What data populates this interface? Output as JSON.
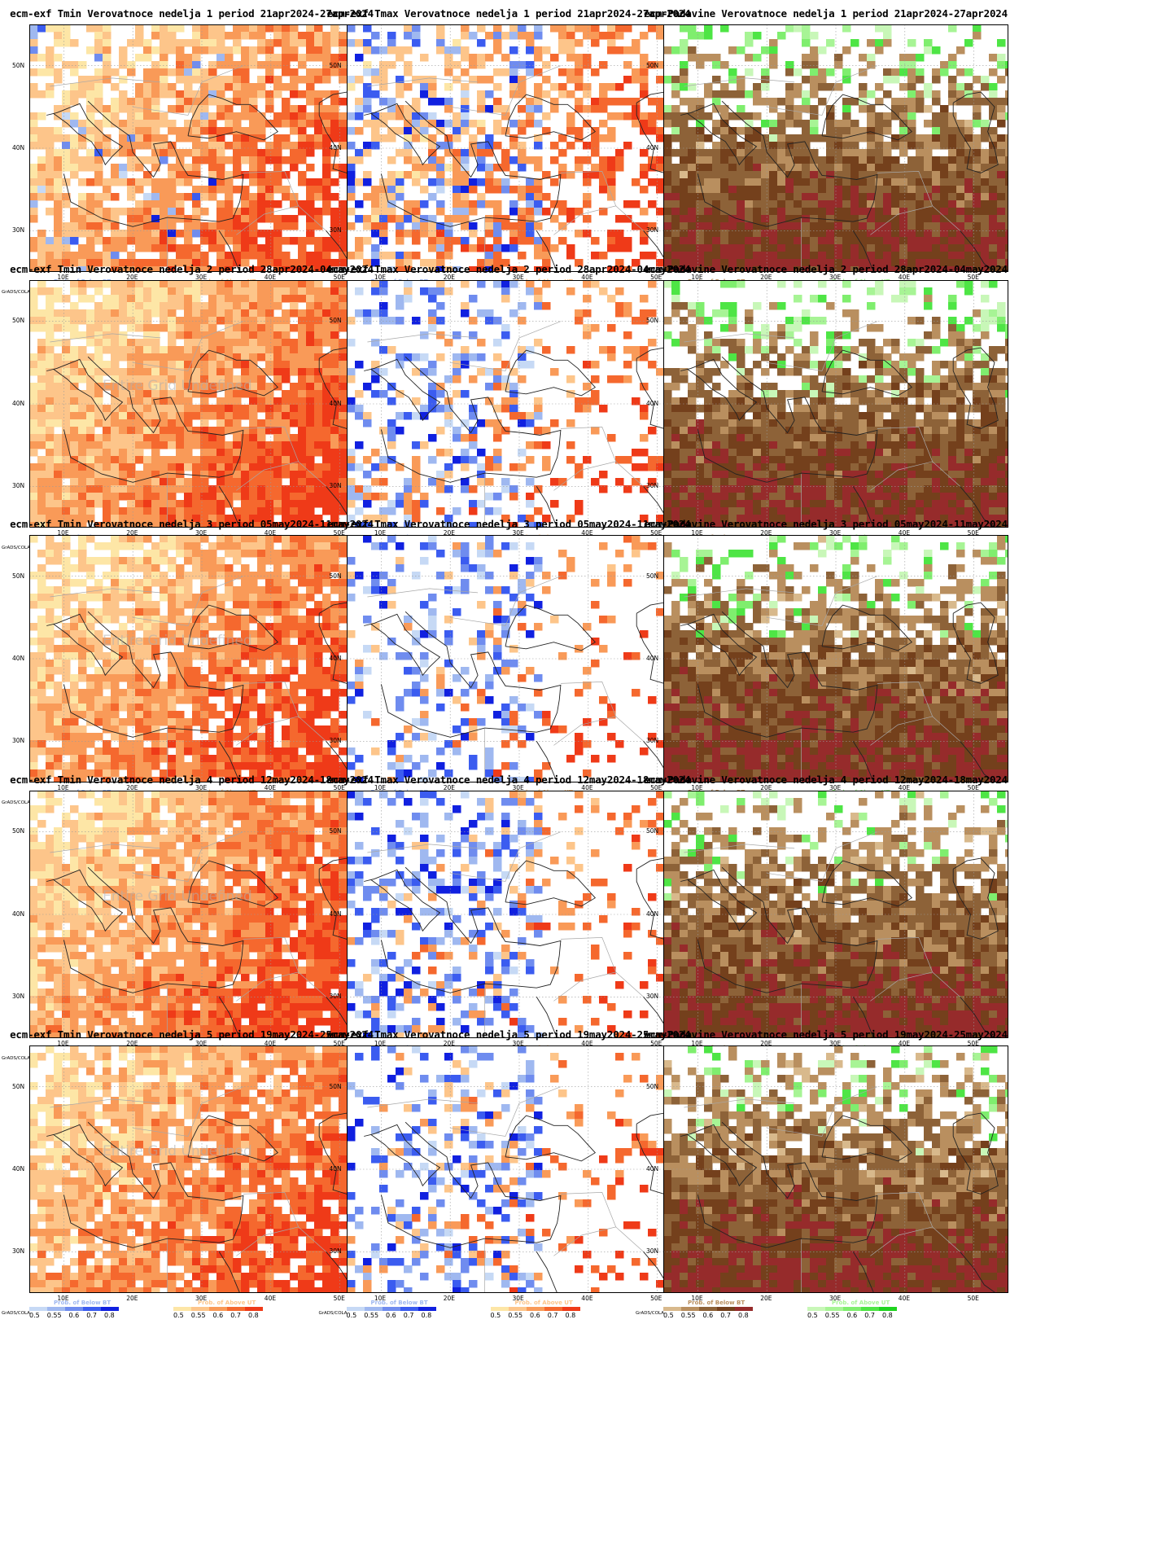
{
  "rows": [
    {
      "week": 1,
      "period": "21apr2024-27apr2024"
    },
    {
      "week": 2,
      "period": "28apr2024-04may2024"
    },
    {
      "week": 3,
      "period": "05may2024-11may2024"
    },
    {
      "week": 4,
      "period": "12may2024-18may2024"
    },
    {
      "week": 5,
      "period": "19may2024-25may2024"
    }
  ],
  "panels": [
    {
      "title": "ecm-exf Tmin Verovatnoce nedelja 1 period 21apr2024-27apr2024",
      "variable": "Tmin",
      "watermark": "",
      "pattern": {
        "below": 0.15,
        "above": 0.75
      }
    },
    {
      "title": "ecm-exf Tmax Verovatnoce nedelja 1 period 21apr2024-27apr2024",
      "variable": "Tmax",
      "watermark": "",
      "pattern": {
        "below": 0.35,
        "above": 0.45
      }
    },
    {
      "title": "ecm-Padavine Verovatnoce nedelja 1 period 21apr2024-27apr2024",
      "variable": "Padavine",
      "watermark": "",
      "pattern": {
        "below": 0.65,
        "above": 0.15
      }
    },
    {
      "title": "ecm-exf Tmin Verovatnoce nedelja 2 period 28apr2024-04may2024",
      "variable": "Tmin",
      "watermark": "Entire Grid Undefined",
      "pattern": {
        "below": 0.0,
        "above": 0.95
      }
    },
    {
      "title": "ecm-exf Tmax Verovatnoce nedelja 2 period 28apr2024-04may2024",
      "variable": "Tmax",
      "watermark": "",
      "pattern": {
        "below": 0.25,
        "above": 0.2
      }
    },
    {
      "title": "ecm-Padavine Verovatnoce nedelja 2 period 28apr2024-04may2024",
      "variable": "Padavine",
      "watermark": "",
      "pattern": {
        "below": 0.6,
        "above": 0.15
      }
    },
    {
      "title": "ecm-exf Tmin Verovatnoce nedelja 3 period 05may2024-11may2024",
      "variable": "Tmin",
      "watermark": "Entire Grid Undefined",
      "pattern": {
        "below": 0.0,
        "above": 0.85
      }
    },
    {
      "title": "ecm-exf Tmax Verovatnoce nedelja 3 period 05may2024-11may2024",
      "variable": "Tmax",
      "watermark": "",
      "pattern": {
        "below": 0.25,
        "above": 0.12
      }
    },
    {
      "title": "ecm-Padavine Verovatnoce nedelja 3 period 05may2024-11may2024",
      "variable": "Padavine",
      "watermark": "",
      "pattern": {
        "below": 0.7,
        "above": 0.12
      }
    },
    {
      "title": "ecm-exf Tmin Verovatnoce nedelja 4 period 12may2024-18may2024",
      "variable": "Tmin",
      "watermark": "Entire Grid Undefined",
      "pattern": {
        "below": 0.0,
        "above": 0.9
      }
    },
    {
      "title": "ecm-exf Tmax Verovatnoce nedelja 4 period 12may2024-18may2024",
      "variable": "Tmax",
      "watermark": "",
      "pattern": {
        "below": 0.3,
        "above": 0.15
      }
    },
    {
      "title": "ecm-Padavine Verovatnoce nedelja 4 period 12may2024-18may2024",
      "variable": "Padavine",
      "watermark": "",
      "pattern": {
        "below": 0.7,
        "above": 0.1
      }
    },
    {
      "title": "ecm-exf Tmin Verovatnoce nedelja 5 period 19may2024-25may2024",
      "variable": "Tmin",
      "watermark": "Entire Grid Undefined",
      "pattern": {
        "below": 0.0,
        "above": 0.85
      }
    },
    {
      "title": "ecm-exf Tmax Verovatnoce nedelja 5 period 19may2024-25may2024",
      "variable": "Tmax",
      "watermark": "",
      "pattern": {
        "below": 0.25,
        "above": 0.15
      }
    },
    {
      "title": "ecm-Padavine Verovatnoce nedelja 5 period 19may2024-25may2024",
      "variable": "Padavine",
      "watermark": "",
      "pattern": {
        "below": 0.75,
        "above": 0.1
      }
    }
  ],
  "axes": {
    "lat_labels": [
      "50N",
      "40N",
      "30N"
    ],
    "lat_values": [
      50,
      40,
      30
    ],
    "lon_labels": [
      "10E",
      "20E",
      "30E",
      "40E",
      "50E"
    ],
    "lon_values": [
      10,
      20,
      30,
      40,
      50
    ],
    "lat_range": [
      25,
      55
    ],
    "lon_range": [
      5,
      55
    ]
  },
  "colorbars": {
    "below_label": "Prob. of Below BT",
    "above_label": "Prob. of Above UT",
    "ticks": [
      "0.5",
      "0.55",
      "0.6",
      "0.7",
      "0.8"
    ],
    "credit": "GrADS/COLA",
    "temp_below_colors": [
      "#c6d9f5",
      "#9fb8f0",
      "#6f8cef",
      "#3b5cf0",
      "#1020e0"
    ],
    "temp_above_colors": [
      "#fde6a6",
      "#fdc58a",
      "#f99a58",
      "#f5682e",
      "#ef3a18"
    ],
    "precip_below_colors": [
      "#d8b98c",
      "#b98f5f",
      "#8d6238",
      "#74401c",
      "#962b2b"
    ],
    "precip_above_colors": [
      "#c8f7b8",
      "#a7f495",
      "#7fee6e",
      "#4ee545",
      "#1fd41f"
    ]
  }
}
